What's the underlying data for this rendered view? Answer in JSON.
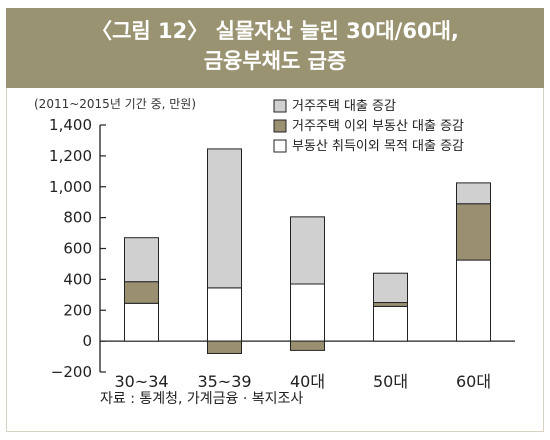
{
  "title_lines": [
    "〈그림 12〉 실물자산 늘린 30대/60대,",
    "금융부채도 급증"
  ],
  "source": "자료 : 통계청, 가계금융 · 복지조사",
  "colors": {
    "title_bg": "#9a9371",
    "housing": "#d0d0d0",
    "other_housing": "#9a9071",
    "non_housing": "#ffffff"
  },
  "chart_data": {
    "type": "bar",
    "stacked": true,
    "unit_note": "(2011~2015년 기간 중, 만원)",
    "categories": [
      "30~34",
      "35~39",
      "40대",
      "50대",
      "60대"
    ],
    "series": [
      {
        "name": "부동산 취득이외 목적 대출 증감",
        "values": [
          245,
          345,
          370,
          225,
          525
        ]
      },
      {
        "name": "거주주택 이외 부동산 대출 증감",
        "values": [
          140,
          -80,
          -60,
          25,
          365
        ]
      },
      {
        "name": "거주주택 대출 증감",
        "values": [
          285,
          900,
          435,
          190,
          135
        ]
      }
    ],
    "ylim": [
      -200,
      1400
    ],
    "yticks": [
      -200,
      0,
      200,
      400,
      600,
      800,
      1000,
      1200,
      1400
    ],
    "ytick_labels": [
      "−200",
      "0",
      "200",
      "400",
      "600",
      "800",
      "1,000",
      "1,200",
      "1,400"
    ],
    "legend_order": [
      "거주주택 대출 증감",
      "거주주택 이외 부동산 대출 증감",
      "부동산 취득이외 목적 대출 증감"
    ],
    "legend_position": "top-right"
  }
}
